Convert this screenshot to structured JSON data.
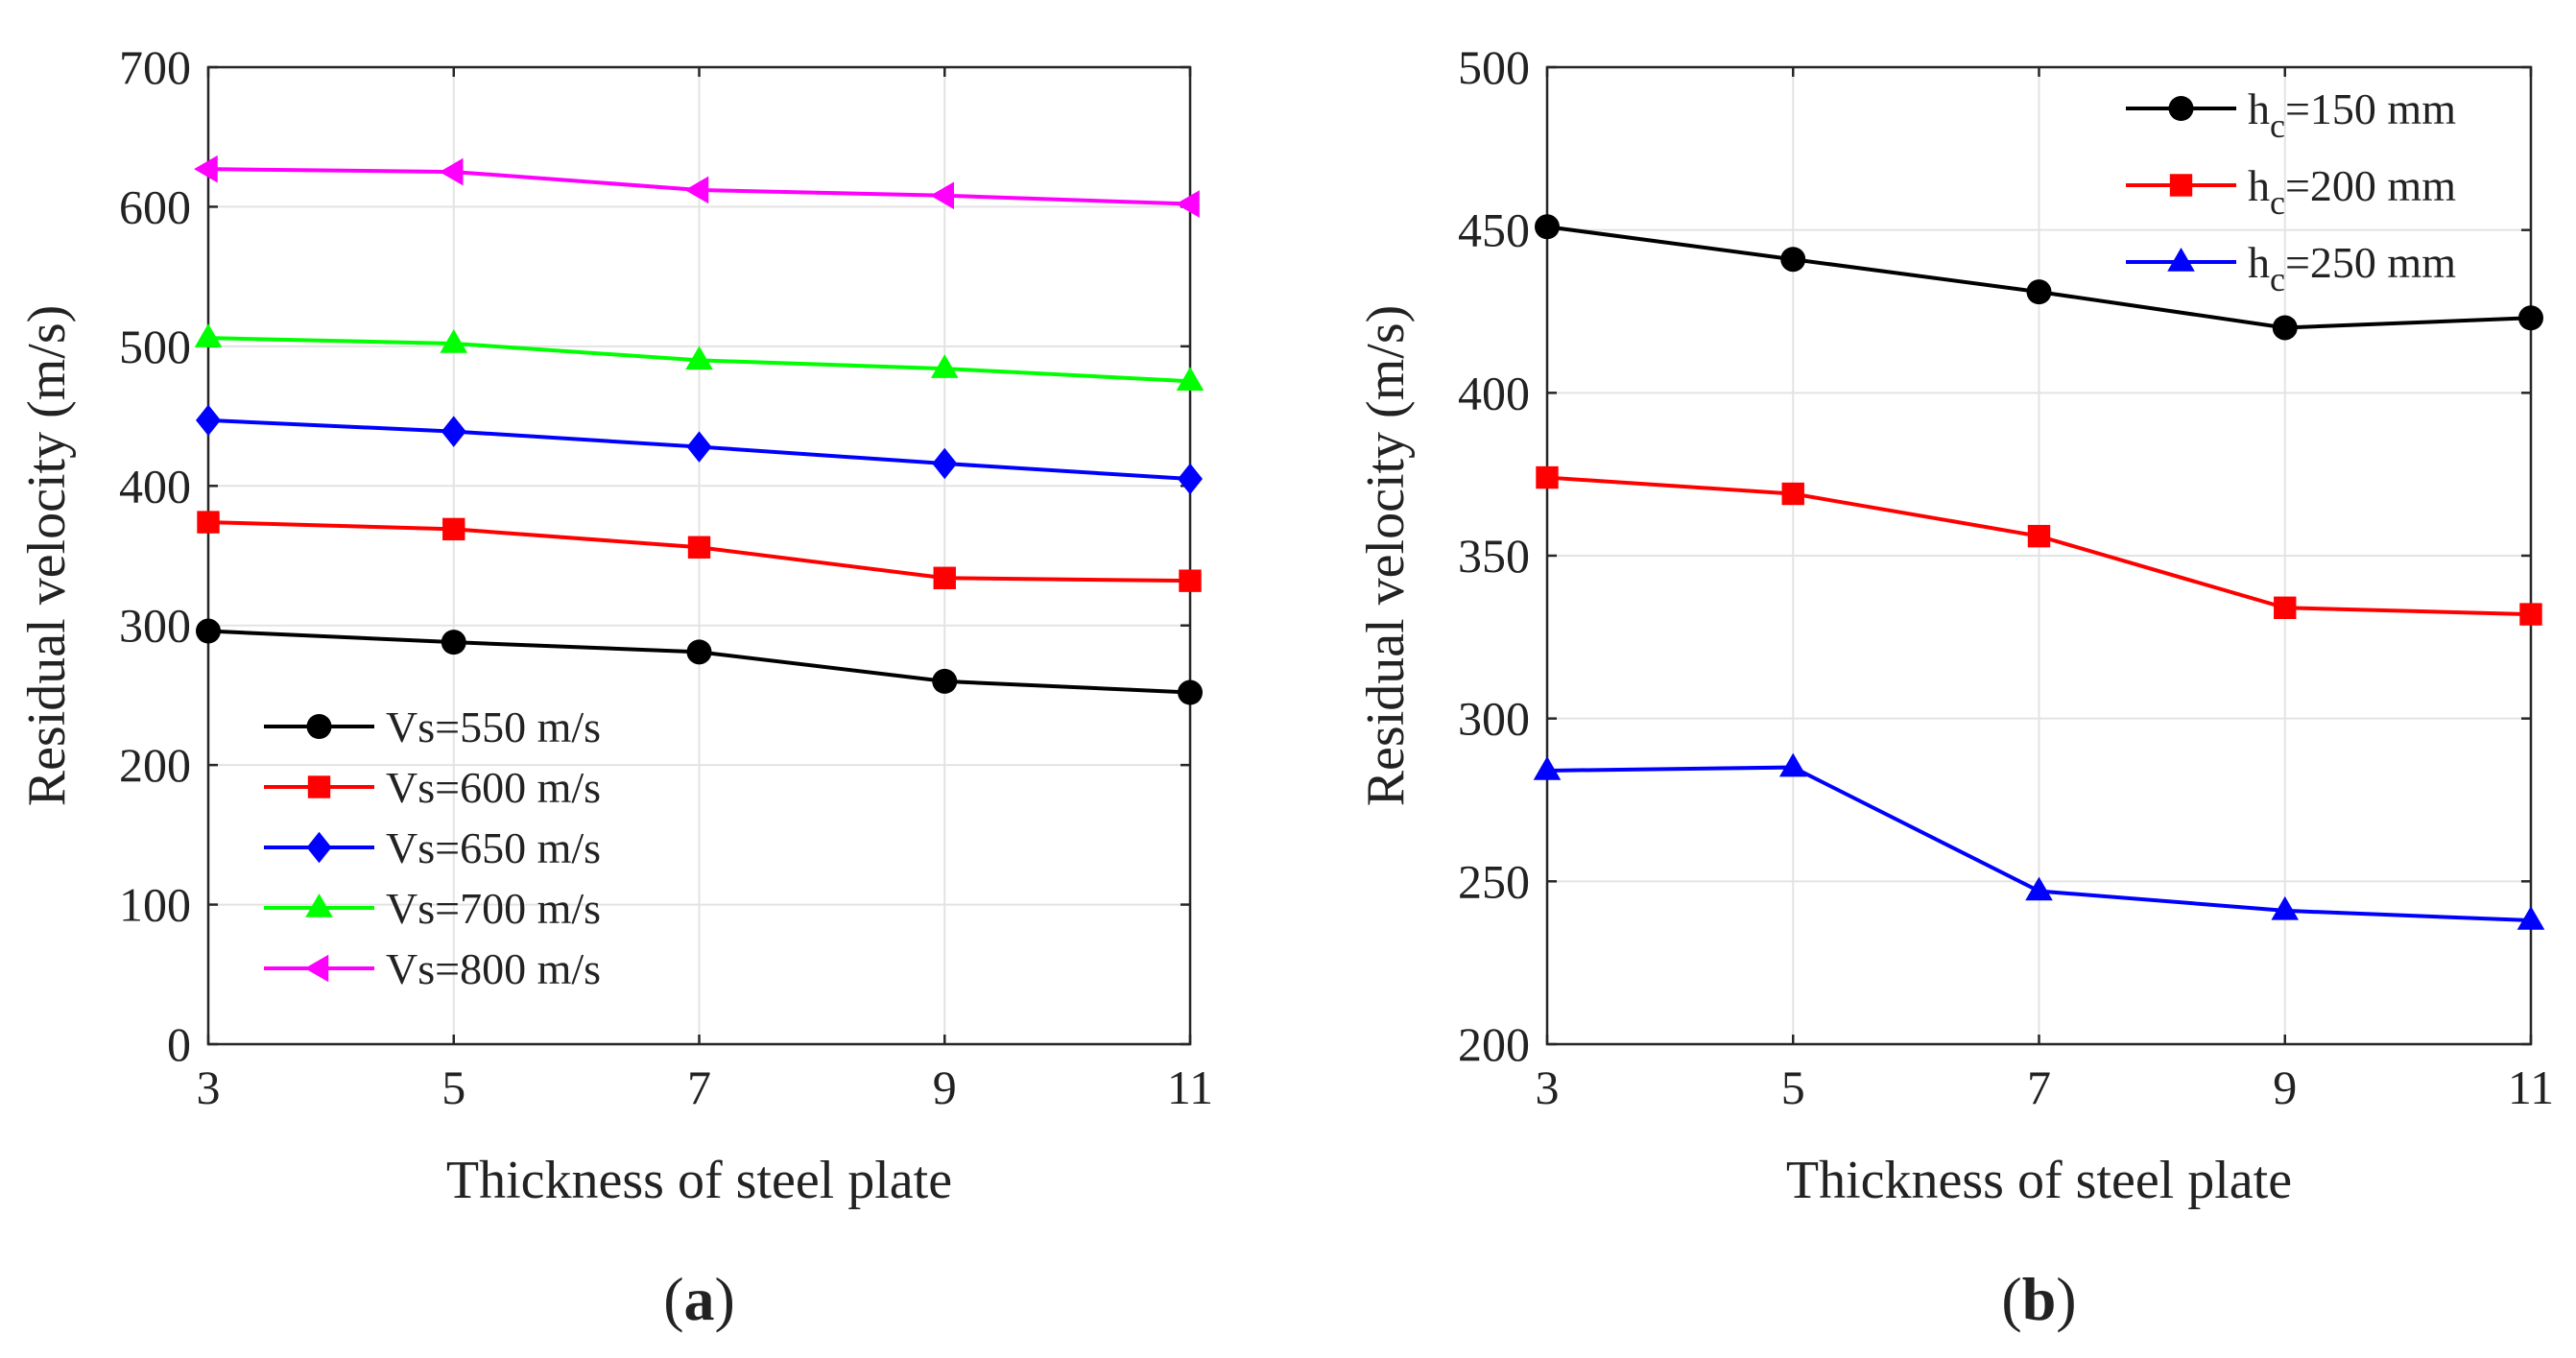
{
  "chart_data": [
    {
      "type": "line",
      "panel_label": "a",
      "xlabel": "Thickness of steel plate",
      "ylabel": "Residual velocity (m/s)",
      "xlim": [
        3,
        11
      ],
      "ylim": [
        0,
        700
      ],
      "x": [
        3,
        5,
        7,
        9,
        11
      ],
      "xticks": [
        "3",
        "5",
        "7",
        "9",
        "11"
      ],
      "yticks": [
        "0",
        "100",
        "200",
        "300",
        "400",
        "500",
        "600",
        "700"
      ],
      "grid": true,
      "legend_position": "bottom-left",
      "series": [
        {
          "name": "Vs=550 m/s",
          "color": "#000000",
          "marker": "circle",
          "values": [
            296,
            288,
            281,
            260,
            252
          ]
        },
        {
          "name": "Vs=600 m/s",
          "color": "#ff0000",
          "marker": "square",
          "values": [
            374,
            369,
            356,
            334,
            332
          ]
        },
        {
          "name": "Vs=650 m/s",
          "color": "#0000ff",
          "marker": "diamond",
          "values": [
            447,
            439,
            428,
            416,
            405
          ]
        },
        {
          "name": "Vs=700 m/s",
          "color": "#00ff00",
          "marker": "triangle-up",
          "values": [
            506,
            502,
            490,
            484,
            475
          ]
        },
        {
          "name": "Vs=800 m/s",
          "color": "#ff00ff",
          "marker": "triangle-left",
          "values": [
            627,
            625,
            612,
            608,
            602
          ]
        }
      ]
    },
    {
      "type": "line",
      "panel_label": "b",
      "xlabel": "Thickness of steel plate",
      "ylabel": "Residual velocity (m/s)",
      "xlim": [
        3,
        11
      ],
      "ylim": [
        200,
        500
      ],
      "x": [
        3,
        5,
        7,
        9,
        11
      ],
      "xticks": [
        "3",
        "5",
        "7",
        "9",
        "11"
      ],
      "yticks": [
        "200",
        "250",
        "300",
        "350",
        "400",
        "450",
        "500"
      ],
      "grid": true,
      "legend_position": "top-right",
      "series": [
        {
          "name": "h",
          "name_subscript": "c",
          "name_suffix": "=150 mm",
          "color": "#000000",
          "marker": "circle",
          "values": [
            451,
            441,
            431,
            420,
            423
          ]
        },
        {
          "name": "h",
          "name_subscript": "c",
          "name_suffix": "=200 mm",
          "color": "#ff0000",
          "marker": "square",
          "values": [
            374,
            369,
            356,
            334,
            332
          ]
        },
        {
          "name": "h",
          "name_subscript": "c",
          "name_suffix": "=250 mm",
          "color": "#0000ff",
          "marker": "triangle-up",
          "values": [
            284,
            285,
            247,
            241,
            238
          ]
        }
      ]
    }
  ]
}
